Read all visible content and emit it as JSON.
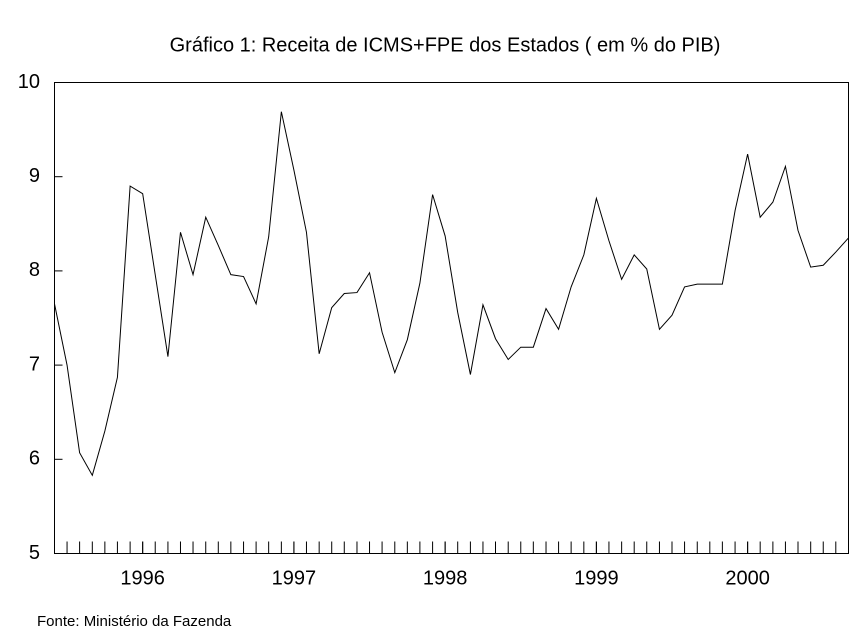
{
  "chart_data": {
    "type": "line",
    "title": "Gráfico 1: Receita de ICMS+FPE dos Estados ( em % do PIB)",
    "source": "Fonte: Ministério da Fazenda",
    "x": [
      1995.417,
      1995.5,
      1995.583,
      1995.667,
      1995.75,
      1995.833,
      1995.917,
      1996,
      1996.083,
      1996.167,
      1996.25,
      1996.333,
      1996.417,
      1996.5,
      1996.583,
      1996.667,
      1996.75,
      1996.833,
      1996.917,
      1997,
      1997.083,
      1997.167,
      1997.25,
      1997.333,
      1997.417,
      1997.5,
      1997.583,
      1997.667,
      1997.75,
      1997.833,
      1997.917,
      1998,
      1998.083,
      1998.167,
      1998.25,
      1998.333,
      1998.417,
      1998.5,
      1998.583,
      1998.667,
      1998.75,
      1998.833,
      1998.917,
      1999,
      1999.083,
      1999.167,
      1999.25,
      1999.333,
      1999.417,
      1999.5,
      1999.583,
      1999.667,
      1999.75,
      1999.833,
      1999.917,
      2000,
      2000.083,
      2000.167,
      2000.25,
      2000.333,
      2000.417,
      2000.5,
      2000.583,
      2000.667
    ],
    "series": [
      {
        "color": "#000000",
        "values": [
          7.65,
          7.0,
          6.07,
          5.83,
          6.3,
          6.87,
          8.9,
          8.82,
          7.96,
          7.09,
          8.41,
          7.96,
          8.57,
          8.27,
          7.96,
          7.94,
          7.65,
          8.36,
          9.69,
          9.07,
          8.41,
          7.12,
          7.61,
          7.76,
          7.77,
          7.98,
          7.35,
          6.92,
          7.27,
          7.87,
          8.81,
          8.37,
          7.56,
          6.9,
          7.64,
          7.28,
          7.06,
          7.19,
          7.19,
          7.6,
          7.38,
          7.83,
          8.17,
          8.77,
          8.32,
          7.91,
          8.17,
          8.02,
          7.38,
          7.53,
          7.83,
          7.86,
          7.86,
          7.86,
          8.64,
          9.24,
          8.57,
          8.73,
          9.11,
          8.43,
          8.04,
          8.06,
          8.2,
          8.35
        ]
      }
    ],
    "xlim": [
      1995.417,
      2000.667
    ],
    "xticks": [
      1996,
      1997,
      1998,
      1999,
      2000
    ],
    "ylim": [
      5,
      10
    ],
    "yticks": [
      5,
      6,
      7,
      8,
      9,
      10
    ],
    "grid": false
  }
}
